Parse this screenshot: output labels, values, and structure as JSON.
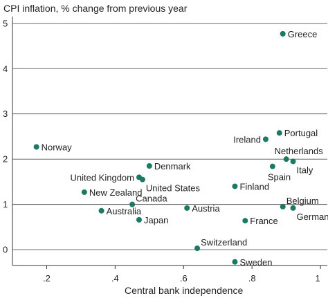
{
  "chart_data": {
    "type": "scatter",
    "title": "CPI inflation, % change from previous year",
    "xlabel": "Central bank independence",
    "ylabel": "",
    "xlim": [
      0.1,
      1.02
    ],
    "ylim": [
      -0.35,
      5.15
    ],
    "x_ticks": [
      {
        "value": 0.2,
        "label": ".2"
      },
      {
        "value": 0.4,
        "label": ".4"
      },
      {
        "value": 0.6,
        "label": ".6"
      },
      {
        "value": 0.8,
        "label": ".8"
      },
      {
        "value": 1.0,
        "label": "1"
      }
    ],
    "y_ticks": [
      {
        "value": 0,
        "label": "0"
      },
      {
        "value": 1,
        "label": "1"
      },
      {
        "value": 2,
        "label": "2"
      },
      {
        "value": 3,
        "label": "3"
      },
      {
        "value": 4,
        "label": "4"
      },
      {
        "value": 5,
        "label": "5"
      }
    ],
    "grid": "horizontal",
    "marker_color": "#1a7a63",
    "points": [
      {
        "label": "Greece",
        "x": 0.89,
        "y": 4.77,
        "side": "right"
      },
      {
        "label": "Portugal",
        "x": 0.88,
        "y": 2.58,
        "side": "right"
      },
      {
        "label": "Ireland",
        "x": 0.84,
        "y": 2.44,
        "side": "left"
      },
      {
        "label": "Norway",
        "x": 0.17,
        "y": 2.27,
        "side": "right"
      },
      {
        "label": "Netherlands",
        "x": 0.9,
        "y": 2.0,
        "side": "above"
      },
      {
        "label": "Italy",
        "x": 0.92,
        "y": 1.95,
        "side": "belowright"
      },
      {
        "label": "Denmark",
        "x": 0.5,
        "y": 1.85,
        "side": "right"
      },
      {
        "label": "Spain",
        "x": 0.86,
        "y": 1.84,
        "side": "below"
      },
      {
        "label": "United Kingdom",
        "x": 0.47,
        "y": 1.6,
        "side": "left"
      },
      {
        "label": "United States",
        "x": 0.48,
        "y": 1.55,
        "side": "belowright"
      },
      {
        "label": "Finland",
        "x": 0.75,
        "y": 1.4,
        "side": "right"
      },
      {
        "label": "New Zealand",
        "x": 0.31,
        "y": 1.27,
        "side": "right"
      },
      {
        "label": "Canada",
        "x": 0.45,
        "y": 1.0,
        "side": "aboveright"
      },
      {
        "label": "Belgium",
        "x": 0.89,
        "y": 0.95,
        "side": "aboveright"
      },
      {
        "label": "Austria",
        "x": 0.61,
        "y": 0.92,
        "side": "right"
      },
      {
        "label": "Germany",
        "x": 0.92,
        "y": 0.92,
        "side": "belowright"
      },
      {
        "label": "Australia",
        "x": 0.36,
        "y": 0.86,
        "side": "right"
      },
      {
        "label": "Japan",
        "x": 0.47,
        "y": 0.66,
        "side": "right"
      },
      {
        "label": "France",
        "x": 0.78,
        "y": 0.64,
        "side": "right"
      },
      {
        "label": "Switzerland",
        "x": 0.64,
        "y": 0.03,
        "side": "aboveright"
      },
      {
        "label": "Sweden",
        "x": 0.75,
        "y": -0.27,
        "side": "right"
      }
    ]
  }
}
